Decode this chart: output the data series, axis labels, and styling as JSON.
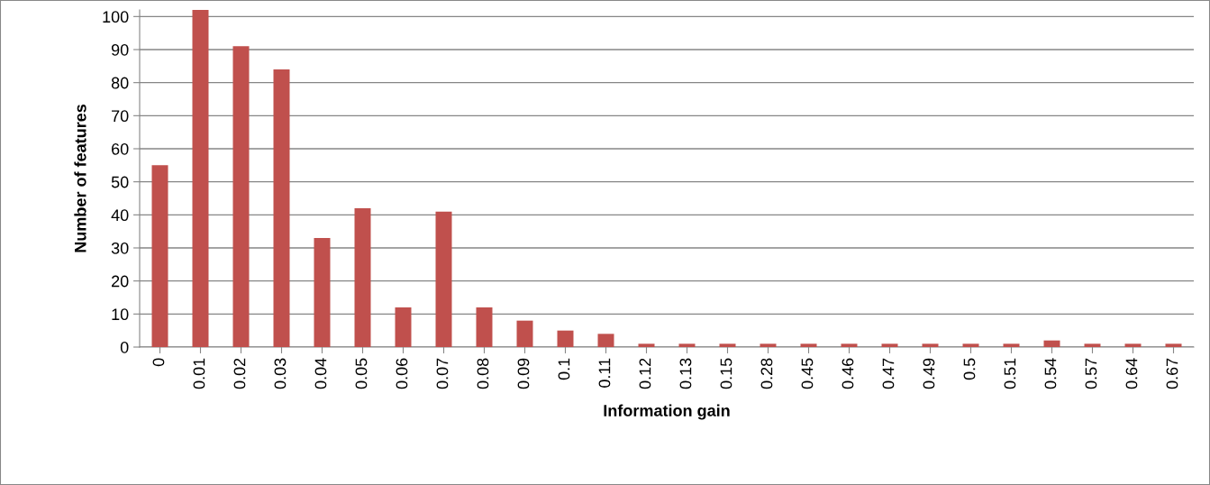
{
  "chart_data": {
    "type": "bar",
    "xlabel": "Information gain",
    "ylabel": "Number of features",
    "categories": [
      "0",
      "0.01",
      "0.02",
      "0.03",
      "0.04",
      "0.05",
      "0.06",
      "0.07",
      "0.08",
      "0.09",
      "0.1",
      "0.11",
      "0.12",
      "0.13",
      "0.15",
      "0.28",
      "0.45",
      "0.46",
      "0.47",
      "0.49",
      "0.5",
      "0.51",
      "0.54",
      "0.57",
      "0.64",
      "0.67"
    ],
    "values": [
      55,
      102,
      91,
      84,
      33,
      42,
      12,
      41,
      12,
      8,
      5,
      4,
      1,
      1,
      1,
      1,
      1,
      1,
      1,
      1,
      1,
      1,
      2,
      1,
      1,
      1
    ],
    "color": "#c0504d",
    "ylim": [
      0,
      102
    ],
    "yticks": [
      0,
      10,
      20,
      30,
      40,
      50,
      60,
      70,
      80,
      90,
      100
    ],
    "grid": "y",
    "legend": false
  }
}
